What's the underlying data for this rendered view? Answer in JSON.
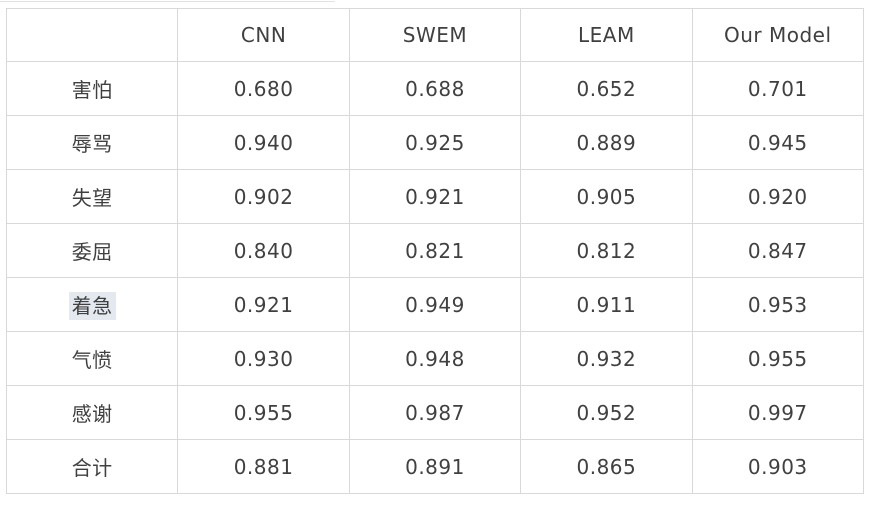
{
  "table": {
    "columns": [
      "",
      "CNN",
      "SWEM",
      "LEAM",
      "Our Model"
    ],
    "rows": [
      {
        "label": "害怕",
        "values": [
          "0.680",
          "0.688",
          "0.652",
          "0.701"
        ],
        "label_selected": false,
        "accent_last": false
      },
      {
        "label": "辱骂",
        "values": [
          "0.940",
          "0.925",
          "0.889",
          "0.945"
        ],
        "label_selected": false,
        "accent_last": false
      },
      {
        "label": "失望",
        "values": [
          "0.902",
          "0.921",
          "0.905",
          "0.920"
        ],
        "label_selected": false,
        "accent_last": false
      },
      {
        "label": "委屈",
        "values": [
          "0.840",
          "0.821",
          "0.812",
          "0.847"
        ],
        "label_selected": false,
        "accent_last": false
      },
      {
        "label": "着急",
        "values": [
          "0.921",
          "0.949",
          "0.911",
          "0.953"
        ],
        "label_selected": true,
        "accent_last": false
      },
      {
        "label": "气愤",
        "values": [
          "0.930",
          "0.948",
          "0.932",
          "0.955"
        ],
        "label_selected": false,
        "accent_last": false
      },
      {
        "label": "感谢",
        "values": [
          "0.955",
          "0.987",
          "0.952",
          "0.997"
        ],
        "label_selected": false,
        "accent_last": false
      },
      {
        "label": "合计",
        "values": [
          "0.881",
          "0.891",
          "0.865",
          "0.903"
        ],
        "label_selected": false,
        "accent_last": true
      }
    ],
    "colors": {
      "text": "#404040",
      "border": "#d9d9d9",
      "accent": "#ff6600",
      "selection": "#e4e9f0"
    }
  }
}
